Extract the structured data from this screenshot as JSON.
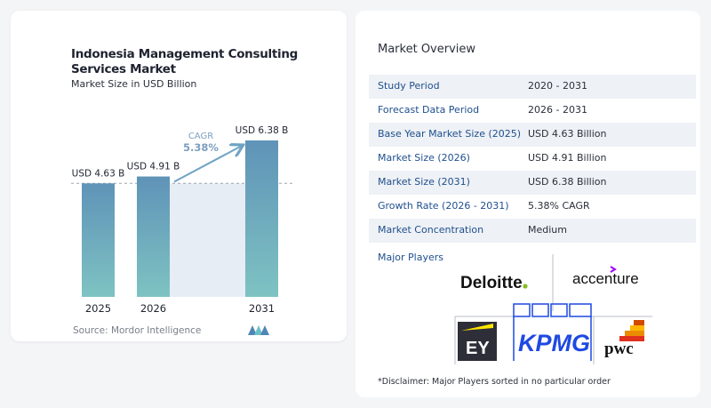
{
  "header": {
    "title": "Indonesia Management Consulting Services Market",
    "subtitle": "Market Size in USD Billion"
  },
  "chart_data": {
    "type": "bar",
    "categories": [
      "2025",
      "2026",
      "2031"
    ],
    "values": [
      4.63,
      4.91,
      6.38
    ],
    "value_labels": [
      "USD 4.63 B",
      "USD 4.91 B",
      "USD 6.38 B"
    ],
    "title": "Indonesia Management Consulting Services Market",
    "subtitle": "Market Size in USD Billion",
    "cagr_label": "CAGR",
    "cagr_value": "5.38%",
    "ylim": [
      0,
      6.38
    ],
    "grid": false,
    "colors": {
      "bar_top": "#5f93b8",
      "bar_bottom": "#7ec3c2",
      "band": "#e6edf4",
      "arrow": "#6fa3c5",
      "cagr_text": "#7c9fbf"
    }
  },
  "source": "Source: Mordor Intelligence",
  "overview": {
    "title": "Market Overview",
    "rows": [
      {
        "label": "Study Period",
        "value": "2020 - 2031"
      },
      {
        "label": "Forecast Data Period",
        "value": "2026 - 2031"
      },
      {
        "label": "Base Year Market Size (2025)",
        "value": "USD 4.63 Billion"
      },
      {
        "label": "Market Size (2026)",
        "value": "USD 4.91 Billion"
      },
      {
        "label": "Market Size (2031)",
        "value": "USD 6.38 Billion"
      },
      {
        "label": "Growth Rate (2026 - 2031)",
        "value": "5.38% CAGR"
      },
      {
        "label": "Market Concentration",
        "value": "Medium"
      }
    ]
  },
  "players": {
    "title": "Major Players",
    "logos": {
      "deloitte": "Deloitte.",
      "accenture": "accenture",
      "ey": "EY",
      "kpmg": "KPMG",
      "pwc": "pwc"
    }
  },
  "disclaimer": "*Disclaimer: Major Players sorted in no particular order"
}
